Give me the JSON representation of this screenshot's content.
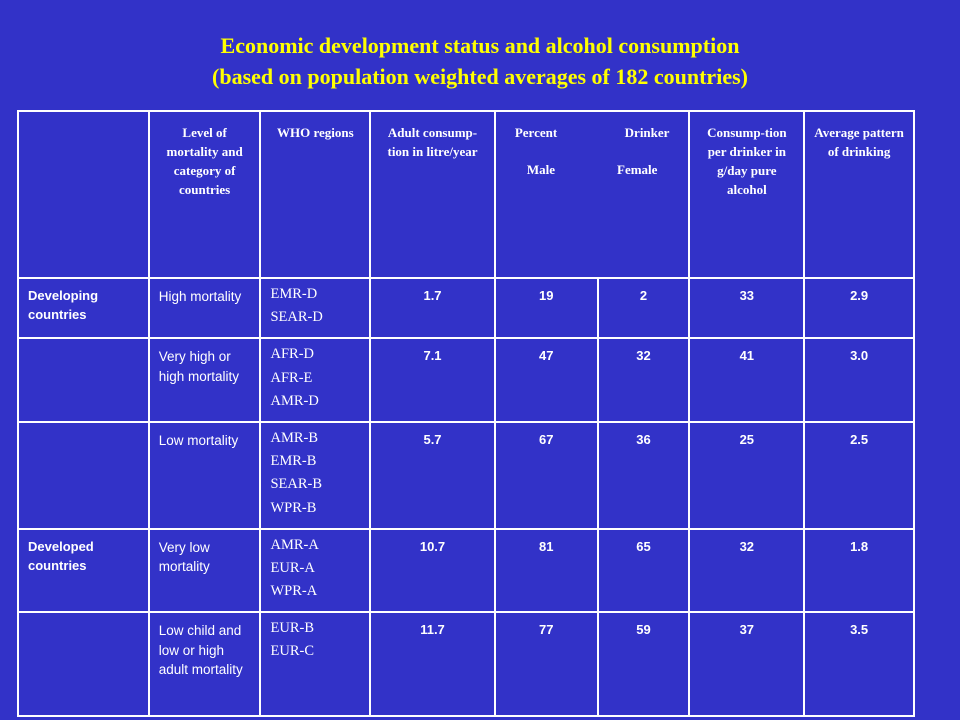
{
  "header": {
    "title_line1": "Economic development status and alcohol consumption",
    "title_line2": "(based on population weighted averages of 182 countries)"
  },
  "table": {
    "headers": {
      "level": "Level of mortality and category of countries",
      "regions": "WHO regions",
      "adult": "Adult consump-tion in litre/year",
      "percent": "Percent",
      "drinker": "Drinker",
      "male": "Male",
      "female": "Female",
      "consumption": "Consump-tion per drinker in g/day pure alcohol",
      "pattern": "Average pattern of drinking"
    },
    "rows": [
      {
        "category": "Developing countries",
        "level": "High mortality",
        "regions": [
          "EMR-D",
          "SEAR-D"
        ],
        "adult": "1.7",
        "male": "19",
        "female": "2",
        "consumption": "33",
        "pattern": "2.9"
      },
      {
        "category": null,
        "level": "Very high or high mortality",
        "regions": [
          "AFR-D",
          "AFR-E",
          "AMR-D"
        ],
        "adult": "7.1",
        "male": "47",
        "female": "32",
        "consumption": "41",
        "pattern": "3.0"
      },
      {
        "category": null,
        "level": "Low mortality",
        "regions": [
          "AMR-B",
          "EMR-B",
          "SEAR-B",
          "WPR-B"
        ],
        "adult": "5.7",
        "male": "67",
        "female": "36",
        "consumption": "25",
        "pattern": "2.5"
      },
      {
        "category": "Developed countries",
        "level": "Very low mortality",
        "regions": [
          "AMR-A",
          "EUR-A",
          "WPR-A"
        ],
        "adult": "10.7",
        "male": "81",
        "female": "65",
        "consumption": "32",
        "pattern": "1.8"
      },
      {
        "category": null,
        "level": "Low child and low or high adult mortality",
        "regions": [
          "EUR-B",
          "EUR-C"
        ],
        "adult": "11.7",
        "male": "77",
        "female": "59",
        "consumption": "37",
        "pattern": "3.5"
      }
    ]
  }
}
